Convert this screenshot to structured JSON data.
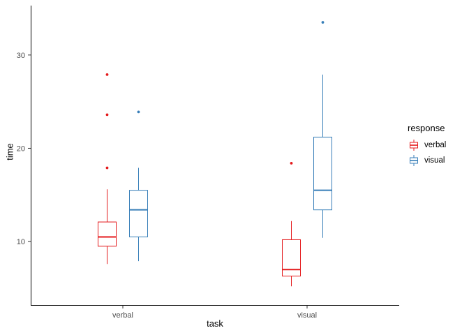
{
  "figure": {
    "background": "#ffffff"
  },
  "chart_data": {
    "type": "boxplot",
    "title": "",
    "xlabel": "task",
    "ylabel": "time",
    "categories": [
      "verbal",
      "visual"
    ],
    "y_ticks": [
      10,
      20,
      30
    ],
    "ylim": [
      3.2,
      35.3
    ],
    "grid": false,
    "legend": {
      "title": "response",
      "position": "right",
      "entries": [
        "verbal",
        "visual"
      ]
    },
    "series": [
      {
        "name": "verbal",
        "color": "#E41A1C",
        "boxes": [
          {
            "category": "verbal",
            "whisker_low": 7.6,
            "q1": 9.5,
            "median": 10.5,
            "q3": 12.1,
            "whisker_high": 15.6,
            "outliers": [
              17.9,
              23.6,
              27.9
            ]
          },
          {
            "category": "visual",
            "whisker_low": 5.2,
            "q1": 6.3,
            "median": 7.0,
            "q3": 10.2,
            "whisker_high": 12.2,
            "outliers": [
              18.4
            ]
          }
        ]
      },
      {
        "name": "visual",
        "color": "#377EB8",
        "boxes": [
          {
            "category": "verbal",
            "whisker_low": 7.9,
            "q1": 10.5,
            "median": 13.4,
            "q3": 15.5,
            "whisker_high": 17.9,
            "outliers": [
              23.9
            ]
          },
          {
            "category": "visual",
            "whisker_low": 10.4,
            "q1": 13.4,
            "median": 15.5,
            "q3": 21.2,
            "whisker_high": 27.9,
            "outliers": [
              33.5
            ]
          }
        ]
      }
    ]
  }
}
